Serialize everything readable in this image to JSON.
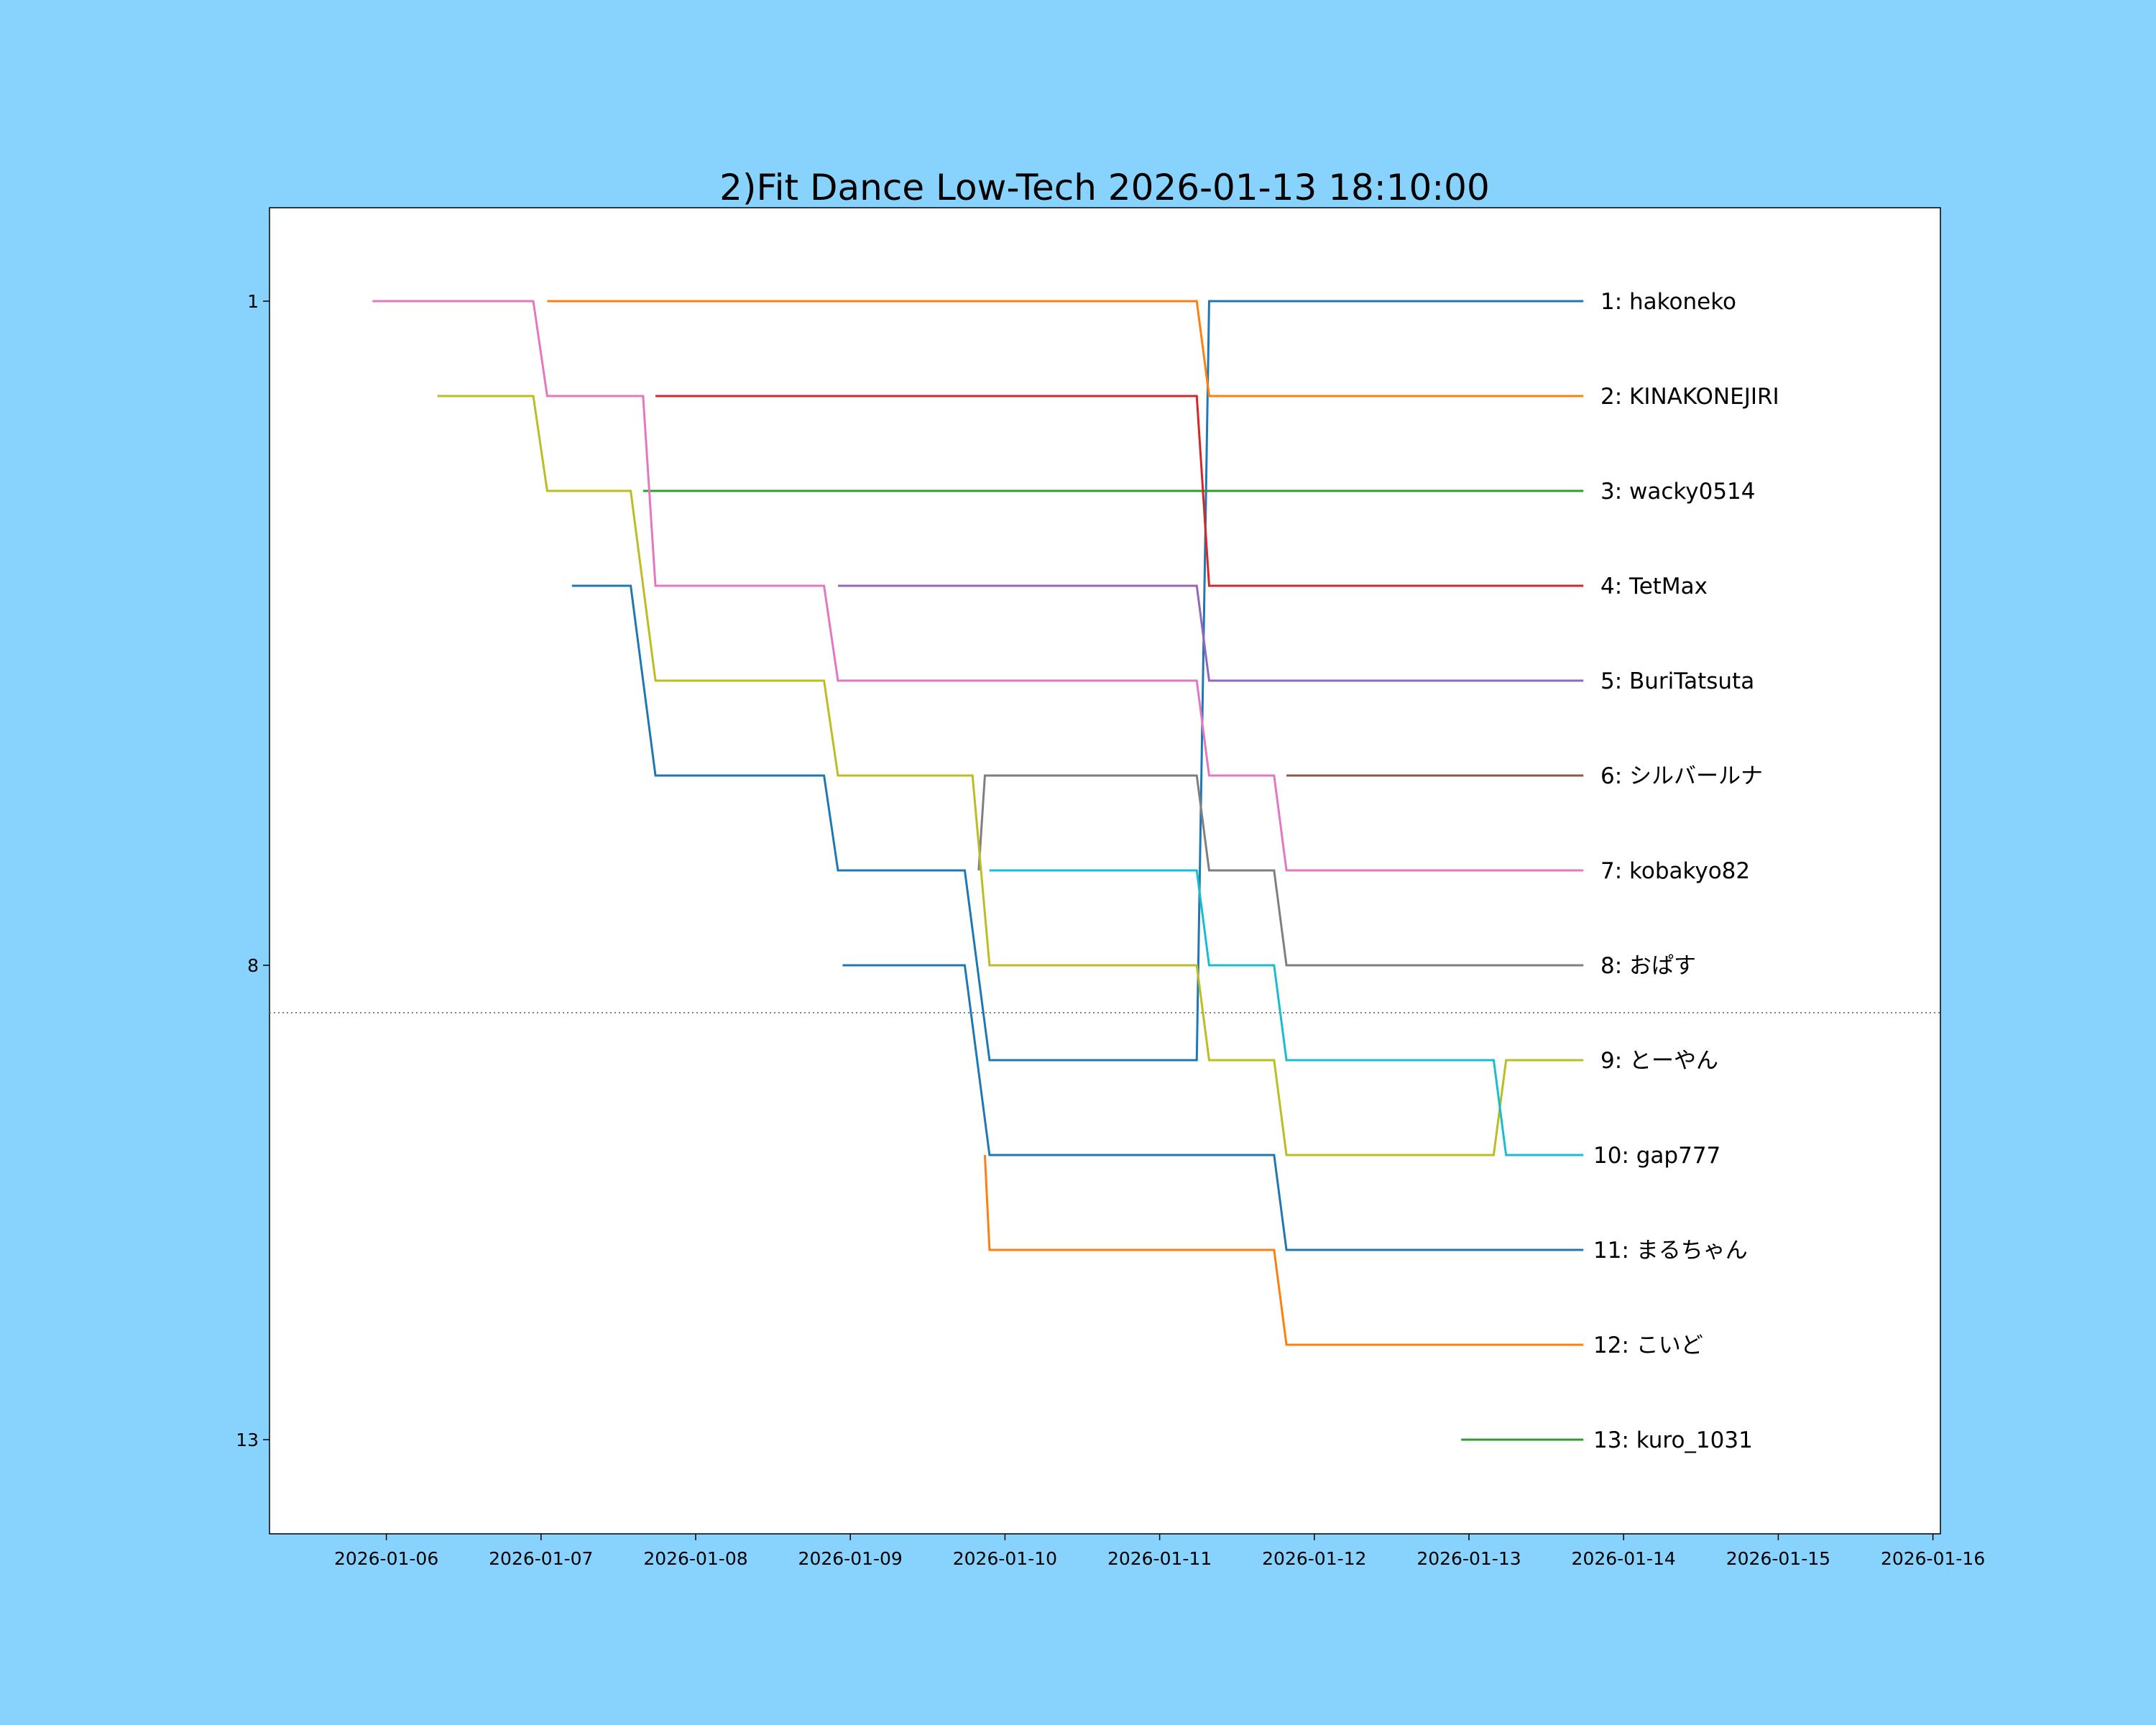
{
  "chart_data": {
    "type": "line",
    "title": "2)Fit Dance Low-Tech 2026-01-13 18:10:00",
    "xlabel": "",
    "ylabel": "",
    "x_unit": "days since 2026-01-06",
    "xlim": [
      -0.77,
      10.17
    ],
    "ylim": [
      14,
      0
    ],
    "xticks": [
      0,
      1,
      2,
      3,
      4,
      5,
      6,
      7,
      8,
      9,
      10
    ],
    "xtick_labels": [
      "2026-01-06",
      "2026-01-07",
      "2026-01-08",
      "2026-01-09",
      "2026-01-10",
      "2026-01-11",
      "2026-01-12",
      "2026-01-13",
      "2026-01-14",
      "2026-01-15",
      "2026-01-16"
    ],
    "yticks": [
      1,
      8,
      13
    ],
    "ytick_labels": [
      "1",
      "8",
      "13"
    ],
    "cutoff_rank": 8.5,
    "grid": false,
    "series": [
      {
        "name": "1: hakoneko",
        "color": "#1f77b4",
        "points": [
          [
            1.2,
            4
          ],
          [
            1.58,
            4
          ],
          [
            1.74,
            6
          ],
          [
            2.83,
            6
          ],
          [
            2.92,
            7
          ],
          [
            3.74,
            7
          ],
          [
            3.9,
            9
          ],
          [
            5.24,
            9
          ],
          [
            5.32,
            1
          ],
          [
            7.74,
            1
          ]
        ]
      },
      {
        "name": "2: KINAKONEJIRI",
        "color": "#ff7f0e",
        "points": [
          [
            1.04,
            1
          ],
          [
            5.24,
            1
          ],
          [
            5.32,
            2
          ],
          [
            7.74,
            2
          ]
        ]
      },
      {
        "name": "3: wacky0514",
        "color": "#2ca02c",
        "points": [
          [
            1.66,
            3
          ],
          [
            7.74,
            3
          ]
        ]
      },
      {
        "name": "4: TetMax",
        "color": "#d62728",
        "points": [
          [
            1.74,
            2
          ],
          [
            5.24,
            2
          ],
          [
            5.32,
            4
          ],
          [
            7.74,
            4
          ]
        ]
      },
      {
        "name": "5: BuriTatsuta",
        "color": "#9467bd",
        "points": [
          [
            2.92,
            4
          ],
          [
            5.24,
            4
          ],
          [
            5.32,
            5
          ],
          [
            7.74,
            5
          ]
        ]
      },
      {
        "name": "6: シルバールナ",
        "color": "#8c564b",
        "points": [
          [
            5.82,
            6
          ],
          [
            7.74,
            6
          ]
        ]
      },
      {
        "name": "7: kobakyo82",
        "color": "#e377c2",
        "points": [
          [
            -0.09,
            1
          ],
          [
            0.95,
            1
          ],
          [
            1.04,
            2
          ],
          [
            1.66,
            2
          ],
          [
            1.74,
            4
          ],
          [
            2.83,
            4
          ],
          [
            2.92,
            5
          ],
          [
            5.24,
            5
          ],
          [
            5.32,
            6
          ],
          [
            5.74,
            6
          ],
          [
            5.82,
            7
          ],
          [
            7.74,
            7
          ]
        ]
      },
      {
        "name": "8: おぱす",
        "color": "#7f7f7f",
        "points": [
          [
            3.83,
            7
          ],
          [
            3.87,
            6
          ],
          [
            5.24,
            6
          ],
          [
            5.32,
            7
          ],
          [
            5.74,
            7
          ],
          [
            5.82,
            8
          ],
          [
            7.74,
            8
          ]
        ]
      },
      {
        "name": "9: とーやん",
        "color": "#bcbd22",
        "points": [
          [
            0.33,
            2
          ],
          [
            0.95,
            2
          ],
          [
            1.04,
            3
          ],
          [
            1.58,
            3
          ],
          [
            1.74,
            5
          ],
          [
            2.83,
            5
          ],
          [
            2.92,
            6
          ],
          [
            3.79,
            6
          ],
          [
            3.9,
            8
          ],
          [
            5.24,
            8
          ],
          [
            5.32,
            9
          ],
          [
            5.74,
            9
          ],
          [
            5.82,
            10
          ],
          [
            7.16,
            10
          ],
          [
            7.24,
            9
          ],
          [
            7.74,
            9
          ]
        ]
      },
      {
        "name": "10: gap777",
        "color": "#17becf",
        "points": [
          [
            3.9,
            7
          ],
          [
            5.24,
            7
          ],
          [
            5.32,
            8
          ],
          [
            5.74,
            8
          ],
          [
            5.82,
            9
          ],
          [
            7.16,
            9
          ],
          [
            7.24,
            10
          ],
          [
            7.74,
            10
          ]
        ]
      },
      {
        "name": "11: まるちゃん",
        "color": "#1f77b4",
        "points": [
          [
            2.95,
            8
          ],
          [
            3.74,
            8
          ],
          [
            3.9,
            10
          ],
          [
            5.74,
            10
          ],
          [
            5.82,
            11
          ],
          [
            7.74,
            11
          ]
        ]
      },
      {
        "name": "12: こいど",
        "color": "#ff7f0e",
        "points": [
          [
            3.87,
            10
          ],
          [
            3.9,
            11
          ],
          [
            5.74,
            11
          ],
          [
            5.82,
            12
          ],
          [
            7.74,
            12
          ]
        ]
      },
      {
        "name": "13: kuro_1031",
        "color": "#2ca02c",
        "points": [
          [
            6.95,
            13
          ],
          [
            7.74,
            13
          ]
        ]
      }
    ]
  }
}
